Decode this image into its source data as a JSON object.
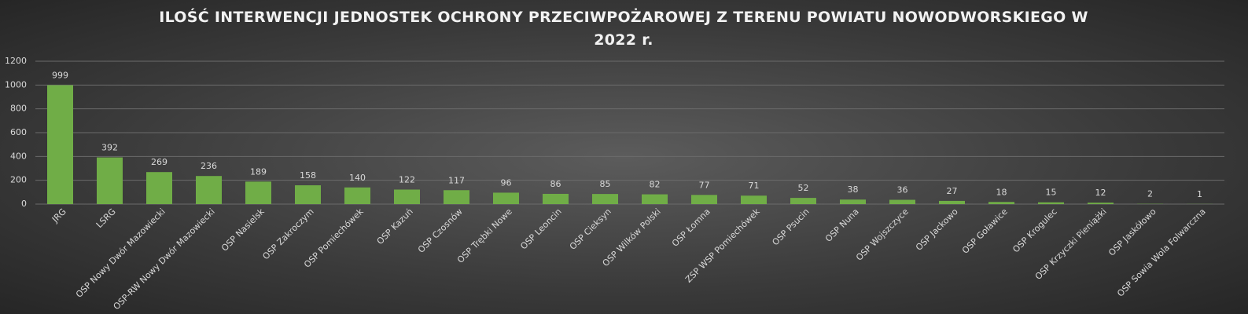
{
  "chart_data": {
    "type": "bar",
    "title": "ILOŚĆ INTERWENCJI JEDNOSTEK OCHRONY PRZECIWPOŻAROWEJ Z TERENU POWIATU NOWODWORSKIEGO W 2022 r.",
    "categories": [
      "JRG",
      "LSRG",
      "OSP Nowy Dwór Mazowiecki",
      "OSP-RW Nowy Dwór Mazowiecki",
      "OSP Nasielsk",
      "OSP Zakroczym",
      "OSP Pomiechówek",
      "OSP Kazuń",
      "OSP Czosnów",
      "OSP Trębki Nowe",
      "OSP Leoncin",
      "OSP Cieksyn",
      "OSP Wilków Polski",
      "OSP Łomna",
      "ZSP WSP Pomiechówek",
      "OSP Psucin",
      "OSP Nuna",
      "OSP Wojszczyce",
      "OSP Jackowo",
      "OSP Goławice",
      "OSP Krogulec",
      "OSP Krzyczki Pieniążki",
      "OSP Jaskółowo",
      "OSP Sowia Wola Folwarczna"
    ],
    "values": [
      999,
      392,
      269,
      236,
      189,
      158,
      140,
      122,
      117,
      96,
      86,
      85,
      82,
      77,
      71,
      52,
      38,
      36,
      27,
      18,
      15,
      12,
      2,
      1
    ],
    "color": "#70ad47",
    "ylim": [
      0,
      1200
    ],
    "yticks": [
      0,
      200,
      400,
      600,
      800,
      1000,
      1200
    ],
    "grid": true
  }
}
